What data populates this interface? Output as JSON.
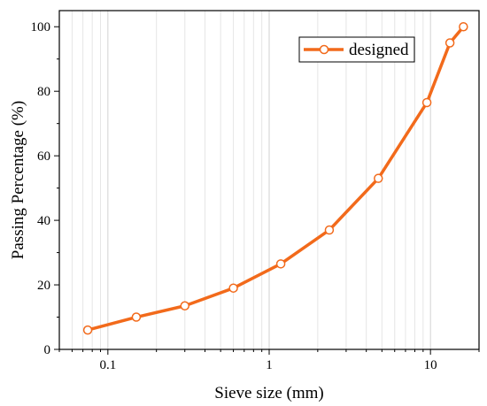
{
  "chart_data": {
    "type": "line",
    "title": "",
    "xlabel": "Sieve size (mm)",
    "ylabel": "Passing Percentage (%)",
    "xscale": "log",
    "xlim": [
      0.05,
      20
    ],
    "ylim": [
      0,
      105
    ],
    "grid": "x-log-vertical",
    "legend_position": "top-right",
    "x_ticks": [
      {
        "value": 0.1,
        "label": "0.1"
      },
      {
        "value": 1,
        "label": "1"
      },
      {
        "value": 10,
        "label": "10"
      }
    ],
    "y_ticks": [
      {
        "value": 0,
        "label": "0"
      },
      {
        "value": 20,
        "label": "20"
      },
      {
        "value": 40,
        "label": "40"
      },
      {
        "value": 60,
        "label": "60"
      },
      {
        "value": 80,
        "label": "80"
      },
      {
        "value": 100,
        "label": "100"
      }
    ],
    "series": [
      {
        "name": "designed",
        "color": "#f26a1b",
        "x": [
          0.075,
          0.15,
          0.3,
          0.6,
          1.18,
          2.36,
          4.75,
          9.5,
          13.2,
          16
        ],
        "y": [
          6,
          10,
          13.5,
          19,
          26.5,
          37,
          53,
          76.5,
          95,
          100
        ]
      }
    ]
  }
}
